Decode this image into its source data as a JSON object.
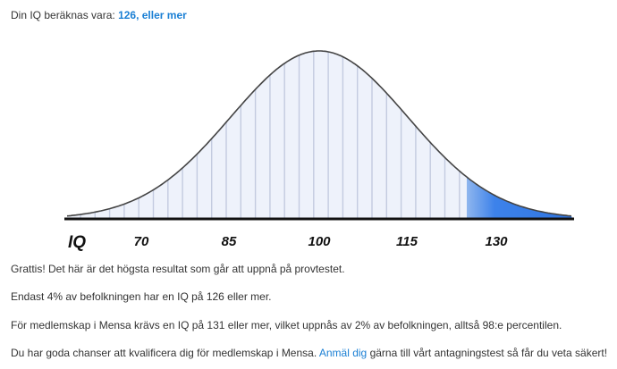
{
  "result": {
    "prefix": "Din IQ beräknas vara:",
    "value_text": "126, eller mer"
  },
  "figure": {
    "axis_label": "IQ",
    "tick_labels": [
      "70",
      "85",
      "100",
      "115",
      "130"
    ]
  },
  "paragraphs": [
    "Grattis! Det här är det högsta resultat som går att uppnå på provtestet.",
    "Endast 4% av befolkningen har en IQ på 126 eller mer.",
    "För medlemskap i Mensa krävs en IQ på 131 eller mer, vilket uppnås av 2% av befolkningen, alltså 98:e percentilen."
  ],
  "cta": {
    "before": "Du har goda chanser att kvalificera dig för medlemskap i Mensa.",
    "link": "Anmäl dig",
    "after": "gärna till vårt antagningstest så får du veta säkert!"
  }
}
